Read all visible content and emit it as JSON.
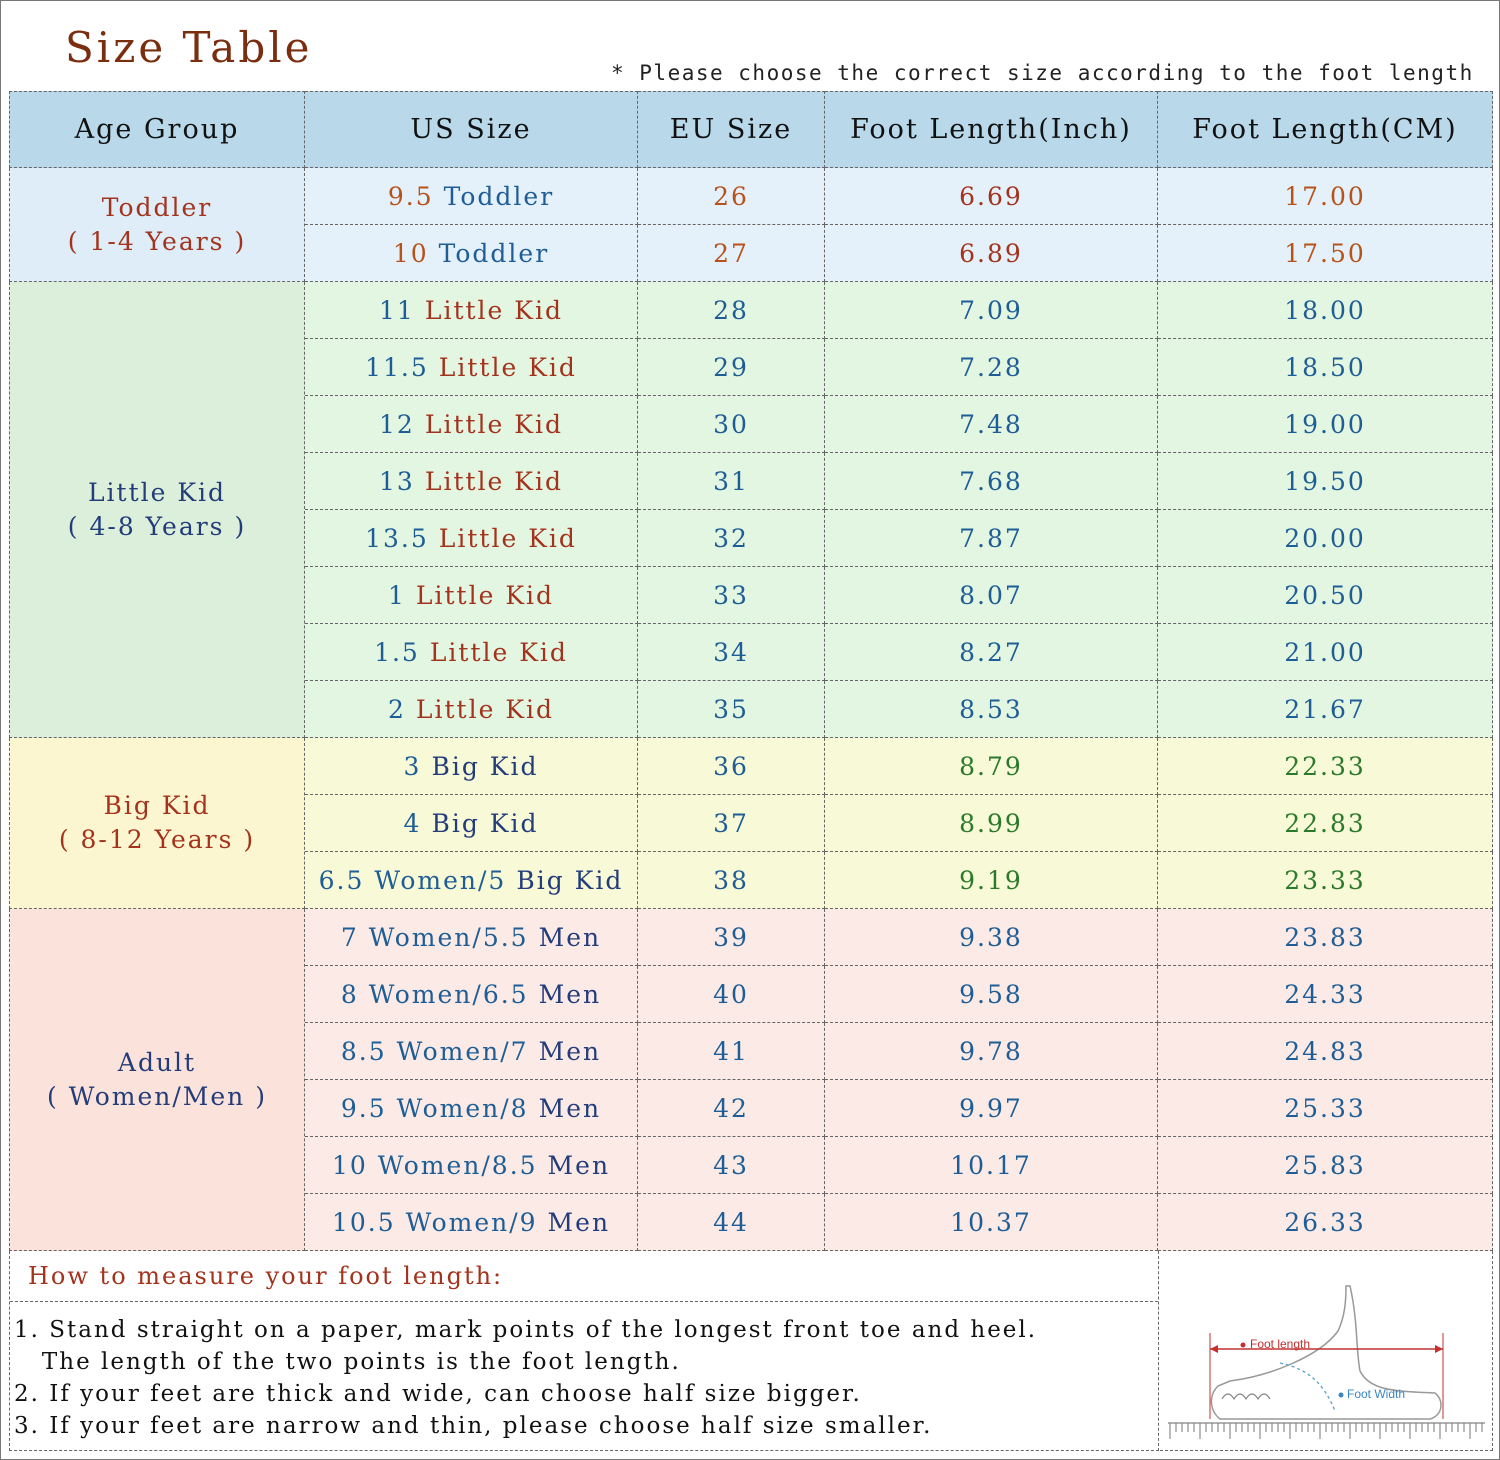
{
  "title": "Size Table",
  "note": "* Please choose the correct size according to the foot length",
  "headers": [
    "Age Group",
    "US Size",
    "EU Size",
    "Foot Length(Inch)",
    "Foot Length(CM)"
  ],
  "groups": [
    {
      "name": "Toddler",
      "sub": "( 1-4 Years )"
    },
    {
      "name": "Little Kid",
      "sub": "( 4-8 Years )"
    },
    {
      "name": "Big Kid",
      "sub": "( 8-12 Years )"
    },
    {
      "name": "Adult",
      "sub": "( Women/Men )"
    }
  ],
  "rows": [
    {
      "us_num": "9.5",
      "us_label": "Toddler",
      "eu": "26",
      "inch": "6.69",
      "cm": "17.00"
    },
    {
      "us_num": "10",
      "us_label": "Toddler",
      "eu": "27",
      "inch": "6.89",
      "cm": "17.50"
    },
    {
      "us_num": "11",
      "us_label": "Little Kid",
      "eu": "28",
      "inch": "7.09",
      "cm": "18.00"
    },
    {
      "us_num": "11.5",
      "us_label": "Little Kid",
      "eu": "29",
      "inch": "7.28",
      "cm": "18.50"
    },
    {
      "us_num": "12",
      "us_label": "Little Kid",
      "eu": "30",
      "inch": "7.48",
      "cm": "19.00"
    },
    {
      "us_num": "13",
      "us_label": "Little Kid",
      "eu": "31",
      "inch": "7.68",
      "cm": "19.50"
    },
    {
      "us_num": "13.5",
      "us_label": "Little Kid",
      "eu": "32",
      "inch": "7.87",
      "cm": "20.00"
    },
    {
      "us_num": "1",
      "us_label": "Little Kid",
      "eu": "33",
      "inch": "8.07",
      "cm": "20.50"
    },
    {
      "us_num": "1.5",
      "us_label": "Little Kid",
      "eu": "34",
      "inch": "8.27",
      "cm": "21.00"
    },
    {
      "us_num": "2",
      "us_label": "Little Kid",
      "eu": "35",
      "inch": "8.53",
      "cm": "21.67"
    },
    {
      "us_num": "3",
      "us_label": "Big Kid",
      "eu": "36",
      "inch": "8.79",
      "cm": "22.33"
    },
    {
      "us_num": "4",
      "us_label": "Big Kid",
      "eu": "37",
      "inch": "8.99",
      "cm": "22.83"
    },
    {
      "us_num": "6.5 Women/5",
      "us_label": "Big Kid",
      "eu": "38",
      "inch": "9.19",
      "cm": "23.33"
    },
    {
      "us_num": "7 Women/5.5",
      "us_label": "Men",
      "eu": "39",
      "inch": "9.38",
      "cm": "23.83"
    },
    {
      "us_num": "8 Women/6.5",
      "us_label": "Men",
      "eu": "40",
      "inch": "9.58",
      "cm": "24.33"
    },
    {
      "us_num": "8.5 Women/7",
      "us_label": "Men",
      "eu": "41",
      "inch": "9.78",
      "cm": "24.83"
    },
    {
      "us_num": "9.5 Women/8",
      "us_label": "Men",
      "eu": "42",
      "inch": "9.97",
      "cm": "25.33"
    },
    {
      "us_num": "10 Women/8.5",
      "us_label": "Men",
      "eu": "43",
      "inch": "10.17",
      "cm": "25.83"
    },
    {
      "us_num": "10.5 Women/9",
      "us_label": "Men",
      "eu": "44",
      "inch": "10.37",
      "cm": "26.33"
    }
  ],
  "howto": {
    "title": "How to measure your foot length:",
    "steps": [
      "1. Stand straight on a paper, mark points of the longest front toe and heel.",
      "   The length of the two points is the foot length.",
      "2. If your feet are thick and wide, can choose half size bigger.",
      "3. If your feet are narrow and thin, please choose half size smaller."
    ]
  },
  "figure": {
    "foot_length_label": "Foot length",
    "foot_width_label": "Foot Width"
  },
  "colors": {
    "header_bg": "#b9d8ea",
    "toddler_bg": "#deedf7",
    "little_kid_bg": "#dcefdb",
    "big_kid_bg": "#fcf6d0",
    "adult_bg": "#fbe2da",
    "accent_red": "#a3331c",
    "text_blue": "#1e5d95"
  }
}
